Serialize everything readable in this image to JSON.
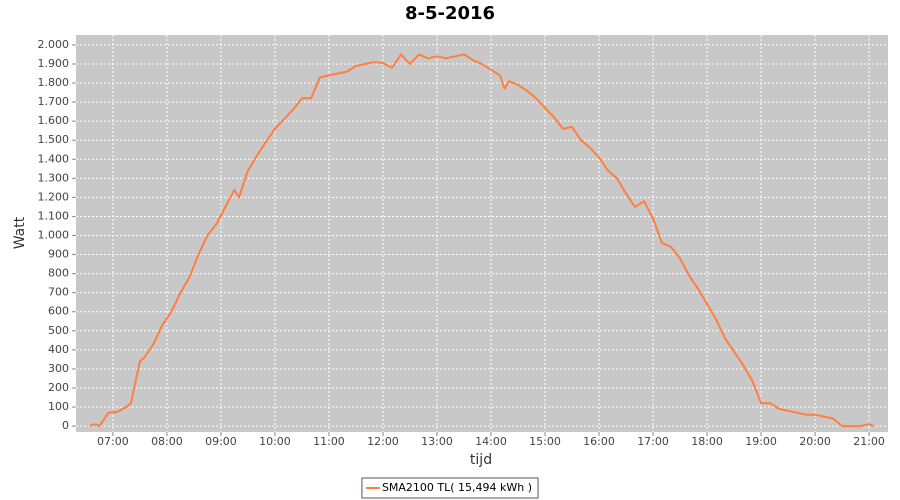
{
  "chart_data": {
    "type": "line",
    "title": "8-5-2016",
    "x_label": "tijd",
    "y_label": "Watt",
    "x": [
      "06:34",
      "06:40",
      "06:45",
      "06:55",
      "07:05",
      "07:15",
      "07:20",
      "07:30",
      "07:35",
      "07:45",
      "07:55",
      "08:05",
      "08:15",
      "08:25",
      "08:35",
      "08:45",
      "08:55",
      "09:05",
      "09:15",
      "09:20",
      "09:30",
      "09:40",
      "09:50",
      "10:00",
      "10:10",
      "10:20",
      "10:30",
      "10:40",
      "10:50",
      "11:00",
      "11:10",
      "11:20",
      "11:30",
      "11:40",
      "11:50",
      "12:00",
      "12:10",
      "12:20",
      "12:30",
      "12:40",
      "12:50",
      "13:00",
      "13:10",
      "13:20",
      "13:30",
      "13:40",
      "13:50",
      "14:00",
      "14:10",
      "14:15",
      "14:20",
      "14:30",
      "14:40",
      "14:50",
      "15:00",
      "15:10",
      "15:20",
      "15:30",
      "15:40",
      "15:50",
      "16:00",
      "16:10",
      "16:20",
      "16:30",
      "16:40",
      "16:50",
      "17:00",
      "17:10",
      "17:20",
      "17:30",
      "17:40",
      "17:50",
      "18:00",
      "18:10",
      "18:20",
      "18:30",
      "18:40",
      "18:50",
      "19:00",
      "19:10",
      "19:20",
      "19:30",
      "19:40",
      "19:50",
      "20:00",
      "20:10",
      "20:20",
      "20:30",
      "20:50",
      "21:00",
      "21:05"
    ],
    "series": [
      {
        "name": "SMA2100 TL( 15,494 kWh )",
        "color": "#ff7f3f",
        "values": [
          0,
          10,
          0,
          70,
          75,
          100,
          120,
          340,
          360,
          430,
          530,
          600,
          700,
          780,
          900,
          1000,
          1060,
          1150,
          1240,
          1200,
          1340,
          1420,
          1490,
          1560,
          1610,
          1660,
          1720,
          1720,
          1830,
          1840,
          1850,
          1860,
          1890,
          1900,
          1910,
          1905,
          1880,
          1950,
          1900,
          1950,
          1930,
          1940,
          1930,
          1940,
          1950,
          1920,
          1900,
          1870,
          1840,
          1770,
          1810,
          1790,
          1760,
          1720,
          1670,
          1620,
          1560,
          1570,
          1500,
          1460,
          1410,
          1340,
          1300,
          1220,
          1150,
          1180,
          1090,
          960,
          940,
          880,
          790,
          720,
          640,
          560,
          460,
          390,
          320,
          240,
          120,
          120,
          90,
          80,
          70,
          60,
          60,
          50,
          40,
          0,
          0,
          10,
          0
        ]
      }
    ],
    "xlim": [
      "06:19",
      "21:21"
    ],
    "xticks": [
      "07:00",
      "08:00",
      "09:00",
      "10:00",
      "11:00",
      "12:00",
      "13:00",
      "14:00",
      "15:00",
      "16:00",
      "17:00",
      "18:00",
      "19:00",
      "20:00",
      "21:00"
    ],
    "ylim": [
      -31,
      2052
    ],
    "yticks": [
      0,
      100,
      200,
      300,
      400,
      500,
      600,
      700,
      800,
      900,
      {
        "value": 1000,
        "label": "1.000"
      },
      {
        "value": 1100,
        "label": "1.100"
      },
      {
        "value": 1200,
        "label": "1.200"
      },
      {
        "value": 1300,
        "label": "1.300"
      },
      {
        "value": 1400,
        "label": "1.400"
      },
      {
        "value": 1500,
        "label": "1.500"
      },
      {
        "value": 1600,
        "label": "1.600"
      },
      {
        "value": 1700,
        "label": "1.700"
      },
      {
        "value": 1800,
        "label": "1.800"
      },
      {
        "value": 1900,
        "label": "1.900"
      },
      {
        "value": 2000,
        "label": "2.000"
      }
    ],
    "grid": true,
    "legend": "bottom"
  }
}
